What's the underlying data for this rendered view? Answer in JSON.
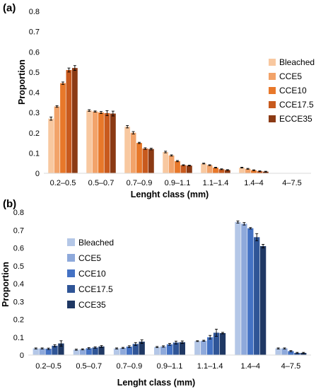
{
  "chart_data": [
    {
      "panel_label": "(a)",
      "type": "bar",
      "xlabel": "Lenght class (mm)",
      "ylabel": "Proportion",
      "ylim": [
        0,
        0.8
      ],
      "yticks": [
        "0",
        "0.1",
        "0.2",
        "0.3",
        "0.4",
        "0.5",
        "0.6",
        "0.7",
        "0.8"
      ],
      "categories": [
        "0.2–0.5",
        "0.5–0.7",
        "0.7–0.9",
        "0.9–1.1",
        "1.1–1.4",
        "1.4–4",
        "4–7.5"
      ],
      "grid": false,
      "error_bars": true,
      "legend_position": "right",
      "series": [
        {
          "name": "Bleached",
          "color": "#f8c8a0",
          "values": [
            0.27,
            0.31,
            0.23,
            0.105,
            0.048,
            0.028,
            0.0
          ],
          "errors": [
            0.008,
            0.004,
            0.006,
            0.004,
            0.002,
            0.002,
            0.0
          ]
        },
        {
          "name": "CCE5",
          "color": "#f2a36a",
          "values": [
            0.33,
            0.305,
            0.2,
            0.088,
            0.04,
            0.022,
            0.0
          ],
          "errors": [
            0.004,
            0.003,
            0.006,
            0.003,
            0.002,
            0.002,
            0.0
          ]
        },
        {
          "name": "CCE10",
          "color": "#e8782a",
          "values": [
            0.445,
            0.3,
            0.15,
            0.06,
            0.028,
            0.015,
            0.0
          ],
          "errors": [
            0.006,
            0.005,
            0.003,
            0.003,
            0.002,
            0.002,
            0.0
          ]
        },
        {
          "name": "CCE17.5",
          "color": "#c85a1e",
          "values": [
            0.51,
            0.297,
            0.122,
            0.04,
            0.02,
            0.01,
            0.0
          ],
          "errors": [
            0.01,
            0.012,
            0.004,
            0.002,
            0.002,
            0.002,
            0.0
          ]
        },
        {
          "name": "ECCE35",
          "color": "#8b3a14",
          "values": [
            0.52,
            0.295,
            0.12,
            0.038,
            0.016,
            0.008,
            0.0
          ],
          "errors": [
            0.012,
            0.012,
            0.004,
            0.002,
            0.002,
            0.002,
            0.0
          ]
        }
      ]
    },
    {
      "panel_label": "(b)",
      "type": "bar",
      "xlabel": "Lenght class (mm)",
      "ylabel": "Proportion",
      "ylim": [
        0,
        0.8
      ],
      "yticks": [
        "0",
        "0.1",
        "0.2",
        "0.3",
        "0.4",
        "0.5",
        "0.6",
        "0.7",
        "0.8"
      ],
      "categories": [
        "0.2–0.5",
        "0.5–0.7",
        "0.7–0.9",
        "0.9–1.1",
        "1.1–1.4",
        "1.4–4",
        "4–7.5"
      ],
      "grid": false,
      "error_bars": true,
      "legend_position": "left",
      "series": [
        {
          "name": "Bleached",
          "color": "#b4c7e7",
          "values": [
            0.037,
            0.03,
            0.037,
            0.045,
            0.078,
            0.745,
            0.037
          ],
          "errors": [
            0.003,
            0.003,
            0.003,
            0.003,
            0.002,
            0.006,
            0.003
          ]
        },
        {
          "name": "CCE5",
          "color": "#8ea9db",
          "values": [
            0.037,
            0.032,
            0.04,
            0.048,
            0.08,
            0.735,
            0.037
          ],
          "errors": [
            0.003,
            0.003,
            0.003,
            0.004,
            0.003,
            0.007,
            0.003
          ]
        },
        {
          "name": "CCE10",
          "color": "#4472c4",
          "values": [
            0.035,
            0.038,
            0.047,
            0.06,
            0.1,
            0.71,
            0.022
          ],
          "errors": [
            0.004,
            0.004,
            0.005,
            0.005,
            0.01,
            0.004,
            0.003
          ]
        },
        {
          "name": "CCE17.5",
          "color": "#2f5597",
          "values": [
            0.052,
            0.042,
            0.062,
            0.07,
            0.125,
            0.66,
            0.012
          ],
          "errors": [
            0.006,
            0.004,
            0.008,
            0.008,
            0.02,
            0.02,
            0.003
          ]
        },
        {
          "name": "CCE35",
          "color": "#1f3864",
          "values": [
            0.065,
            0.048,
            0.075,
            0.072,
            0.123,
            0.61,
            0.012
          ],
          "errors": [
            0.015,
            0.005,
            0.01,
            0.007,
            0.004,
            0.01,
            0.003
          ]
        }
      ]
    }
  ]
}
